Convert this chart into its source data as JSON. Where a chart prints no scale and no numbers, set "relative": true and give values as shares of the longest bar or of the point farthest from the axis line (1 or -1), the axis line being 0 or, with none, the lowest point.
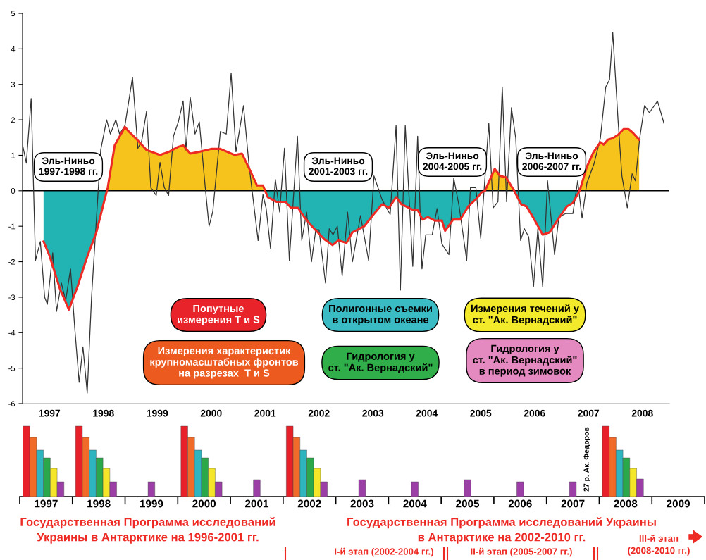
{
  "chart_data": [
    {
      "type": "line",
      "xlim": [
        1997,
        2009
      ],
      "ylim": [
        -6,
        5
      ],
      "xticks": [
        {
          "value": 1997.5,
          "label": "1997"
        },
        {
          "value": 1998.5,
          "label": "1998"
        },
        {
          "value": 1999.5,
          "label": "1999"
        },
        {
          "value": 2000.5,
          "label": "2000"
        },
        {
          "value": 2001.5,
          "label": "2001"
        },
        {
          "value": 2002.5,
          "label": "2002"
        },
        {
          "value": 2003.5,
          "label": "2003"
        },
        {
          "value": 2004.5,
          "label": "2004"
        },
        {
          "value": 2005.5,
          "label": "2005"
        },
        {
          "value": 2006.5,
          "label": "2006"
        },
        {
          "value": 2007.5,
          "label": "2007"
        },
        {
          "value": 2008.5,
          "label": "2008"
        }
      ],
      "yticks": [
        -6,
        -5,
        -4,
        -3,
        -2,
        -1,
        0,
        1,
        2,
        3,
        4,
        5
      ],
      "grid": false,
      "legend": false,
      "ref_lines": [
        {
          "axis": "y",
          "value": 0,
          "color": "#000000"
        }
      ],
      "series": [
        {
          "type": "line",
          "color": "#333333",
          "x": [
            1997.0,
            1997.07,
            1997.16,
            1997.24,
            1997.33,
            1997.41,
            1997.46,
            1997.56,
            1997.63,
            1997.72,
            1997.8,
            1997.89,
            1997.97,
            1998.05,
            1998.12,
            1998.2,
            1998.28,
            1998.45,
            1998.56,
            1998.63,
            1998.73,
            1998.8,
            1998.9,
            1999.04,
            1999.14,
            1999.21,
            1999.3,
            1999.38,
            1999.48,
            1999.55,
            1999.63,
            1999.71,
            1999.8,
            1999.89,
            1999.98,
            2000.03,
            2000.11,
            2000.2,
            2000.28,
            2000.39,
            2000.46,
            2000.53,
            2000.67,
            2000.78,
            2000.87,
            2000.96,
            2001.1,
            2001.2,
            2001.37,
            2001.46,
            2001.52,
            2001.6,
            2001.69,
            2001.77,
            2001.86,
            2001.95,
            2002.1,
            2002.18,
            2002.27,
            2002.36,
            2002.44,
            2002.5,
            2002.62,
            2002.69,
            2002.76,
            2002.84,
            2002.93,
            2003.03,
            2003.12,
            2003.27,
            2003.42,
            2003.52,
            2003.67,
            2003.82,
            2003.93,
            2004.01,
            2004.1,
            2004.24,
            2004.33,
            2004.41,
            2004.48,
            2004.6,
            2004.69,
            2004.78,
            2004.91,
            2005.0,
            2005.1,
            2005.24,
            2005.31,
            2005.41,
            2005.5,
            2005.65,
            2005.73,
            2005.82,
            2005.9,
            2005.98,
            2006.07,
            2006.15,
            2006.24,
            2006.31,
            2006.39,
            2006.48,
            2006.56,
            2006.65,
            2006.74,
            2006.87,
            2006.95,
            2007.08,
            2007.21,
            2007.3,
            2007.38,
            2007.47,
            2007.6,
            2007.72,
            2007.82,
            2007.89,
            2007.95,
            2008.05,
            2008.12,
            2008.22,
            2008.31,
            2008.37,
            2008.45,
            2008.54,
            2008.63,
            2008.78,
            2008.9
          ],
          "values": [
            1.3,
            0.78,
            2.6,
            -1.96,
            -1.43,
            -3.0,
            -3.2,
            -1.75,
            -3.4,
            -2.6,
            -3.1,
            -2.2,
            -3.9,
            -5.4,
            -4.4,
            -5.7,
            -3.0,
            1.15,
            2.0,
            1.6,
            2.0,
            1.6,
            1.84,
            3.2,
            1.2,
            1.4,
            2.24,
            0.09,
            -0.13,
            0.8,
            0.09,
            -0.13,
            1.54,
            1.94,
            2.53,
            1.15,
            2.64,
            1.6,
            1.94,
            0.09,
            -1.0,
            -0.58,
            1.67,
            1.6,
            3.32,
            1.1,
            2.4,
            0.75,
            -1.4,
            -0.11,
            -0.5,
            -1.62,
            0.32,
            -0.6,
            1.2,
            -1.96,
            1.54,
            -1.4,
            -0.6,
            -2.0,
            -1.1,
            -1.1,
            -2.6,
            -1.07,
            -1.24,
            -1.0,
            -2.4,
            -0.6,
            -2.0,
            -0.7,
            -1.96,
            0.42,
            -0.25,
            -0.67,
            1.84,
            -2.8,
            1.84,
            -2.13,
            1.54,
            -2.2,
            -1.24,
            -1.24,
            -0.5,
            -1.5,
            -1.8,
            0.35,
            -0.44,
            -1.96,
            0.09,
            0.09,
            -1.34,
            1.9,
            -0.48,
            -0.31,
            2.93,
            -0.31,
            2.34,
            1.48,
            -1.4,
            -1.07,
            -1.3,
            -2.7,
            -1.07,
            -2.7,
            0.28,
            -1.8,
            -0.74,
            -0.64,
            -0.64,
            0.28,
            -0.77,
            0.22,
            0.75,
            1.48,
            2.93,
            3.13,
            4.46,
            1.94,
            0.42,
            -0.48,
            0.48,
            0.28,
            1.48,
            2.4,
            2.2,
            2.53,
            1.9
          ]
        },
        {
          "type": "area",
          "color": "#f5c31c",
          "x": [
            1998.565,
            1998.58,
            1998.71,
            1998.9,
            1998.97,
            1999.1,
            1999.3,
            1999.55,
            1999.72,
            1999.89,
            1999.98,
            2000.11,
            2000.28,
            2000.5,
            2000.67,
            2000.93,
            2001.07,
            2001.22,
            2001.35,
            2001.46,
            2001.5,
            2003.0,
            2005.58,
            2005.76,
            2005.86,
            2005.97,
            2006.12,
            2006.6,
            2007.33,
            2007.34,
            2007.47,
            2007.59,
            2007.72,
            2007.78,
            2007.86,
            2007.95,
            2008.05,
            2008.15,
            2008.24,
            2008.32,
            2008.44
          ],
          "values": [
            0,
            0.09,
            1.28,
            1.8,
            1.67,
            1.48,
            1.15,
            1.01,
            1.1,
            1.24,
            1.28,
            1.05,
            1.1,
            1.18,
            1.18,
            1.01,
            1.05,
            0.58,
            0.15,
            0.15,
            0,
            null,
            0,
            0.62,
            0.42,
            0.38,
            0,
            null,
            0,
            0.02,
            0.68,
            1.08,
            1.37,
            1.3,
            1.44,
            1.48,
            1.58,
            1.74,
            1.74,
            1.64,
            1.44
          ]
        },
        {
          "type": "area",
          "color": "#22b3b3",
          "x": [
            1997.39,
            1997.5,
            1997.69,
            1997.86,
            1998.02,
            1998.19,
            1998.37,
            1998.5,
            1998.565,
            2000.0,
            2001.5,
            2001.55,
            2001.71,
            2001.88,
            2001.98,
            2002.11,
            2002.24,
            2002.37,
            2002.6,
            2002.75,
            2002.86,
            2003.01,
            2003.12,
            2003.34,
            2003.51,
            2003.67,
            2003.8,
            2003.93,
            2004.03,
            2004.25,
            2004.33,
            2004.42,
            2004.52,
            2004.65,
            2004.78,
            2004.84,
            2004.99,
            2005.12,
            2005.27,
            2005.43,
            2005.51,
            2005.58,
            2005.85,
            2006.12,
            2006.25,
            2006.35,
            2006.48,
            2006.65,
            2006.78,
            2006.95,
            2007.1,
            2007.21,
            2007.33
          ],
          "values": [
            -1.43,
            -1.83,
            -2.75,
            -3.35,
            -2.7,
            -1.9,
            -1.17,
            -0.38,
            0,
            null,
            0,
            -0.18,
            -0.31,
            -0.31,
            -0.48,
            -0.48,
            -0.77,
            -1.0,
            -1.37,
            -1.53,
            -1.4,
            -1.47,
            -1.17,
            -1.0,
            -0.67,
            -0.38,
            -0.48,
            -0.18,
            -0.38,
            -0.54,
            -0.54,
            -0.81,
            -0.74,
            -0.84,
            -0.84,
            -1.13,
            -0.81,
            -0.81,
            -0.44,
            -0.21,
            -0.05,
            0,
            null,
            0,
            -0.38,
            -0.44,
            -0.77,
            -1.24,
            -1.17,
            -0.77,
            -0.44,
            -0.34,
            0
          ]
        },
        {
          "type": "line",
          "color": "#ee2a24",
          "x": [
            1997.39,
            1997.5,
            1997.69,
            1997.86,
            1998.02,
            1998.19,
            1998.37,
            1998.5,
            1998.58,
            1998.71,
            1998.9,
            1998.97,
            1999.1,
            1999.3,
            1999.55,
            1999.72,
            1999.89,
            1999.98,
            2000.11,
            2000.28,
            2000.5,
            2000.67,
            2000.93,
            2001.07,
            2001.22,
            2001.35,
            2001.46,
            2001.55,
            2001.71,
            2001.88,
            2001.98,
            2002.11,
            2002.24,
            2002.37,
            2002.6,
            2002.75,
            2002.86,
            2003.01,
            2003.12,
            2003.34,
            2003.51,
            2003.67,
            2003.8,
            2003.93,
            2004.03,
            2004.25,
            2004.33,
            2004.42,
            2004.52,
            2004.65,
            2004.78,
            2004.84,
            2004.99,
            2005.12,
            2005.27,
            2005.43,
            2005.51,
            2005.58,
            2005.76,
            2005.86,
            2005.97,
            2006.12,
            2006.25,
            2006.35,
            2006.48,
            2006.65,
            2006.78,
            2006.95,
            2007.1,
            2007.21,
            2007.34,
            2007.47,
            2007.59,
            2007.72,
            2007.78,
            2007.86,
            2007.95,
            2008.05,
            2008.15,
            2008.24,
            2008.32,
            2008.44
          ],
          "values": [
            -1.43,
            -1.83,
            -2.75,
            -3.35,
            -2.7,
            -1.9,
            -1.17,
            -0.38,
            0.09,
            1.28,
            1.8,
            1.67,
            1.48,
            1.15,
            1.01,
            1.1,
            1.24,
            1.28,
            1.05,
            1.1,
            1.18,
            1.18,
            1.01,
            1.05,
            0.58,
            0.15,
            0.15,
            -0.18,
            -0.31,
            -0.31,
            -0.48,
            -0.48,
            -0.77,
            -1.0,
            -1.37,
            -1.53,
            -1.4,
            -1.47,
            -1.17,
            -1.0,
            -0.67,
            -0.38,
            -0.48,
            -0.18,
            -0.38,
            -0.54,
            -0.54,
            -0.81,
            -0.74,
            -0.84,
            -0.84,
            -1.13,
            -0.81,
            -0.81,
            -0.44,
            -0.21,
            -0.05,
            0,
            0.62,
            0.42,
            0.38,
            0,
            -0.38,
            -0.44,
            -0.77,
            -1.24,
            -1.17,
            -0.77,
            -0.44,
            -0.34,
            0.02,
            0.68,
            1.08,
            1.37,
            1.3,
            1.44,
            1.48,
            1.58,
            1.74,
            1.74,
            1.64,
            1.44
          ]
        }
      ],
      "annotations": [
        "Эль-Ниньо\n1997-1998 гг.",
        "Эль-Ниньо\n2001-2003 гг.",
        "Эль-Ниньо\n2004-2005 гг.",
        "Эль-Ниньо\n2006-2007 гг.",
        "Попутные\nизмерения T и S",
        "Измерения характеристик\nкрупномасштабных фронтов\nна разрезах  T и S",
        "Полигонные съемки\nв открытом океане",
        "Гидрология у\nст. \"Ак. Вернадский\"",
        "Измерения течений у\nст. \"Ак. Вернадский\"",
        "Гидрология у\nст. \"Ак. Вернадский\"\nв период зимовок"
      ]
    },
    {
      "type": "bar",
      "relative": true,
      "legend": false,
      "grid": false,
      "categories": [
        "1997",
        "1998",
        "1999",
        "2000",
        "2001",
        "2002",
        "2003",
        "2004",
        "2005",
        "2006",
        "2007",
        "2008",
        "2009"
      ],
      "series": [
        {
          "color": "#e8202a",
          "values": [
            1,
            1,
            null,
            1,
            null,
            1,
            null,
            null,
            null,
            null,
            null,
            1,
            null
          ]
        },
        {
          "color": "#f06a28",
          "values": [
            0.84,
            0.84,
            null,
            0.84,
            null,
            0.84,
            null,
            null,
            null,
            null,
            null,
            0.84,
            null
          ]
        },
        {
          "color": "#2fb5c0",
          "values": [
            0.66,
            0.66,
            null,
            0.66,
            null,
            0.66,
            null,
            null,
            null,
            null,
            null,
            0.66,
            null
          ]
        },
        {
          "color": "#2aa84a",
          "values": [
            0.55,
            0.55,
            null,
            0.55,
            null,
            0.55,
            null,
            null,
            null,
            null,
            null,
            0.55,
            null
          ]
        },
        {
          "color": "#f5e629",
          "values": [
            0.4,
            0.4,
            null,
            0.4,
            null,
            0.4,
            null,
            null,
            null,
            null,
            null,
            0.4,
            null
          ]
        },
        {
          "color": "#9b3fa6",
          "values": [
            0.21,
            0.21,
            0.21,
            0.21,
            0.24,
            0.21,
            0.24,
            0.21,
            0.24,
            0.21,
            0.21,
            0.25,
            null
          ]
        }
      ],
      "annotations": [
        "27 р. Ак. Федоров",
        "Государственная Программа исследований\nУкраины в Антарктике на 1996-2001 гг.",
        "Государственная Программа исследований Украины\nв Антарктике на 2002-2010 гг.",
        "I-й этап (2002-2004 гг.)",
        "II-й этап (2005-2007 гг.)",
        "III-й этап\n(2008-2010 гг.)"
      ]
    }
  ]
}
